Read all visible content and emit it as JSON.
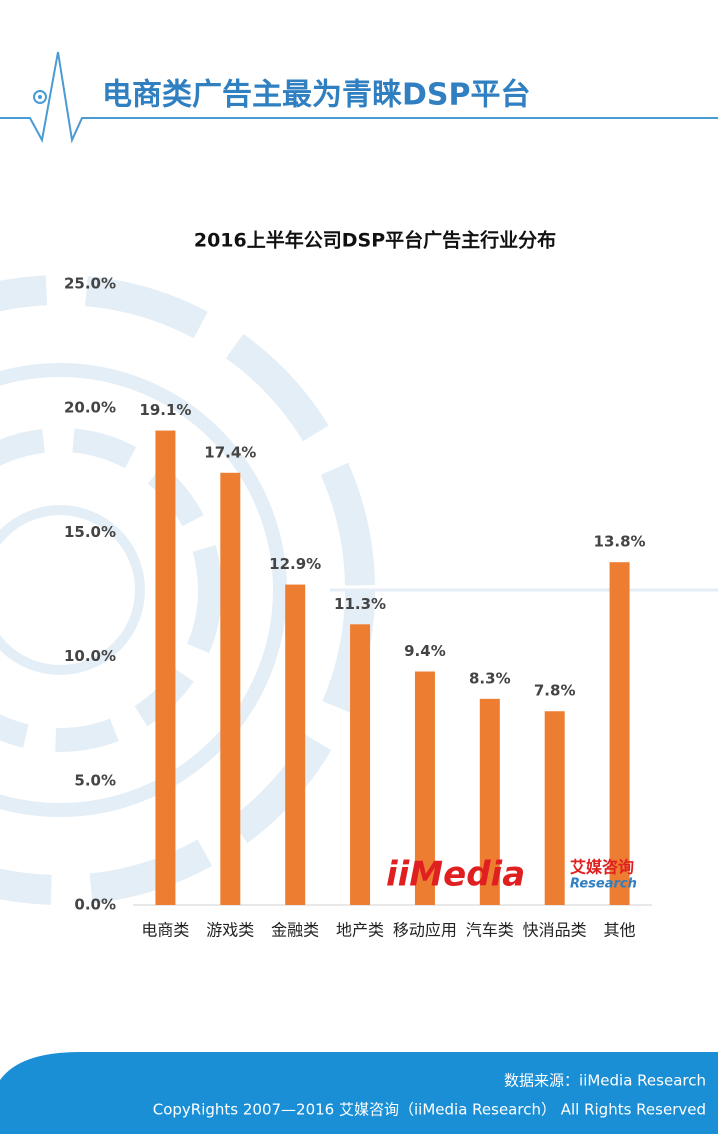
{
  "header": {
    "title": "电商类广告主最为青睐DSP平台"
  },
  "chart_data": {
    "type": "bar",
    "title": "2016上半年公司DSP平台广告主行业分布",
    "categories": [
      "电商类",
      "游戏类",
      "金融类",
      "地产类",
      "移动应用",
      "汽车类",
      "快消品类",
      "其他"
    ],
    "values": [
      19.1,
      17.4,
      12.9,
      11.3,
      9.4,
      8.3,
      7.8,
      13.8
    ],
    "value_labels": [
      "19.1%",
      "17.4%",
      "12.9%",
      "11.3%",
      "9.4%",
      "8.3%",
      "7.8%",
      "13.8%"
    ],
    "color": "#ed7d31",
    "ylim": [
      0,
      25
    ],
    "yticks": [
      {
        "value": 0,
        "label": "0.0%"
      },
      {
        "value": 5,
        "label": "5.0%"
      },
      {
        "value": 10,
        "label": "10.0%"
      },
      {
        "value": 15,
        "label": "15.0%"
      },
      {
        "value": 20,
        "label": "20.0%"
      },
      {
        "value": 25,
        "label": "25.0%"
      }
    ],
    "grid": false
  },
  "logo": {
    "name": "iiMedia",
    "cn": "艾媒咨询",
    "en": "Research"
  },
  "footer": {
    "source": "数据来源：iiMedia Research",
    "copyright": "CopyRights 2007—2016 艾媒咨询（iiMedia Research） All Rights Reserved"
  }
}
